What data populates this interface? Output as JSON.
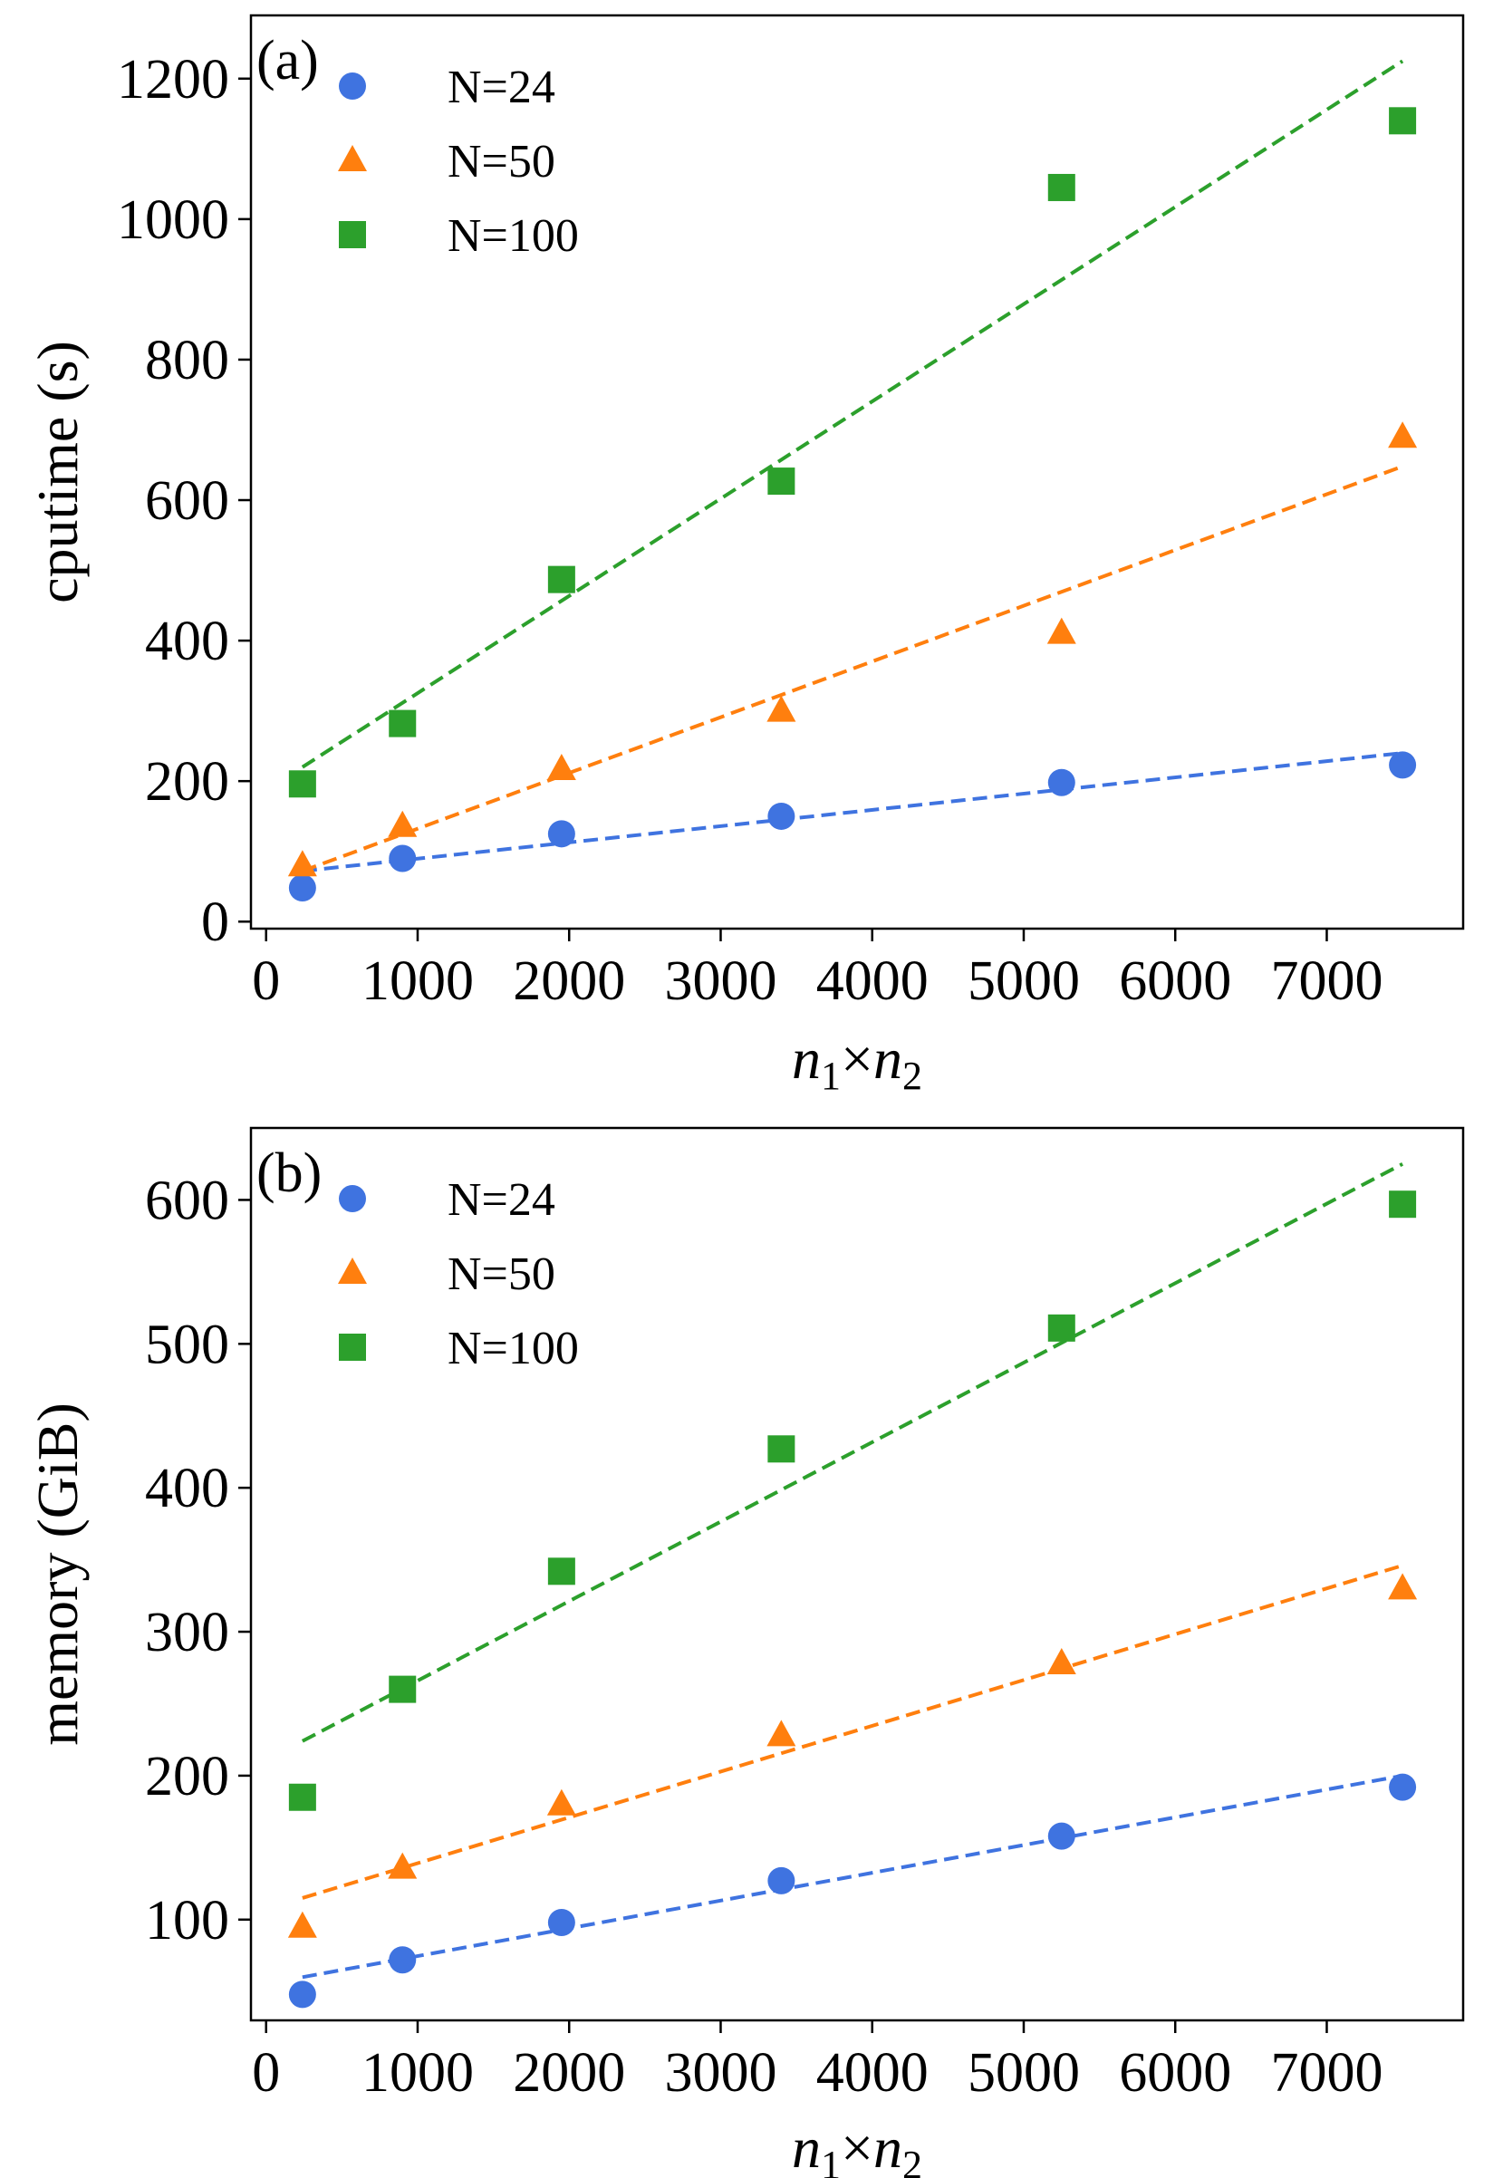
{
  "colors": {
    "N=24": "#3f73e0",
    "N=50": "#ff7f0e",
    "N=100": "#2ca02c"
  },
  "chart_data": [
    {
      "type": "scatter",
      "panel_label": "(a)",
      "xlabel_text": "n",
      "xlabel_sub1": "1",
      "xlabel_mid": "×n",
      "xlabel_sub2": "2",
      "ylabel": "cputime (s)",
      "xlim": [
        -100,
        7900
      ],
      "ylim": [
        -10,
        1290
      ],
      "xticks": [
        0,
        1000,
        2000,
        3000,
        4000,
        5000,
        6000,
        7000
      ],
      "yticks": [
        0,
        200,
        400,
        600,
        800,
        1000,
        1200
      ],
      "x": [
        240,
        900,
        1950,
        3400,
        5250,
        7500
      ],
      "series": [
        {
          "name": "N=24",
          "marker": "circle",
          "values": [
            48,
            90,
            125,
            150,
            198,
            223
          ],
          "fit": [
            [
              240,
              72
            ],
            [
              7500,
              240
            ]
          ]
        },
        {
          "name": "N=50",
          "marker": "triangle",
          "values": [
            80,
            136,
            217,
            300,
            411,
            690
          ],
          "fit": [
            [
              240,
              72
            ],
            [
              7500,
              648
            ]
          ]
        },
        {
          "name": "N=100",
          "marker": "square",
          "values": [
            196,
            282,
            487,
            627,
            1045,
            1140
          ],
          "fit": [
            [
              240,
              220
            ],
            [
              7500,
              1225
            ]
          ]
        }
      ],
      "legend_position": "top-left"
    },
    {
      "type": "scatter",
      "panel_label": "(b)",
      "xlabel_text": "n",
      "xlabel_sub1": "1",
      "xlabel_mid": "×n",
      "xlabel_sub2": "2",
      "ylabel": "memory (GiB)",
      "xlim": [
        -100,
        7900
      ],
      "ylim": [
        30,
        650
      ],
      "xticks": [
        0,
        1000,
        2000,
        3000,
        4000,
        5000,
        6000,
        7000
      ],
      "yticks": [
        100,
        200,
        300,
        400,
        500,
        600
      ],
      "x": [
        240,
        900,
        1950,
        3400,
        5250,
        7500
      ],
      "series": [
        {
          "name": "N=24",
          "marker": "circle",
          "values": [
            48,
            72,
            98,
            127,
            158,
            192
          ],
          "fit": [
            [
              240,
              60
            ],
            [
              7500,
              200
            ]
          ]
        },
        {
          "name": "N=50",
          "marker": "triangle",
          "values": [
            95,
            136,
            180,
            228,
            278,
            330
          ],
          "fit": [
            [
              240,
              115
            ],
            [
              7500,
              346
            ]
          ]
        },
        {
          "name": "N=100",
          "marker": "square",
          "values": [
            185,
            260,
            342,
            427,
            511,
            597
          ],
          "fit": [
            [
              240,
              224
            ],
            [
              7500,
              625
            ]
          ]
        }
      ],
      "legend_position": "top-left"
    }
  ]
}
